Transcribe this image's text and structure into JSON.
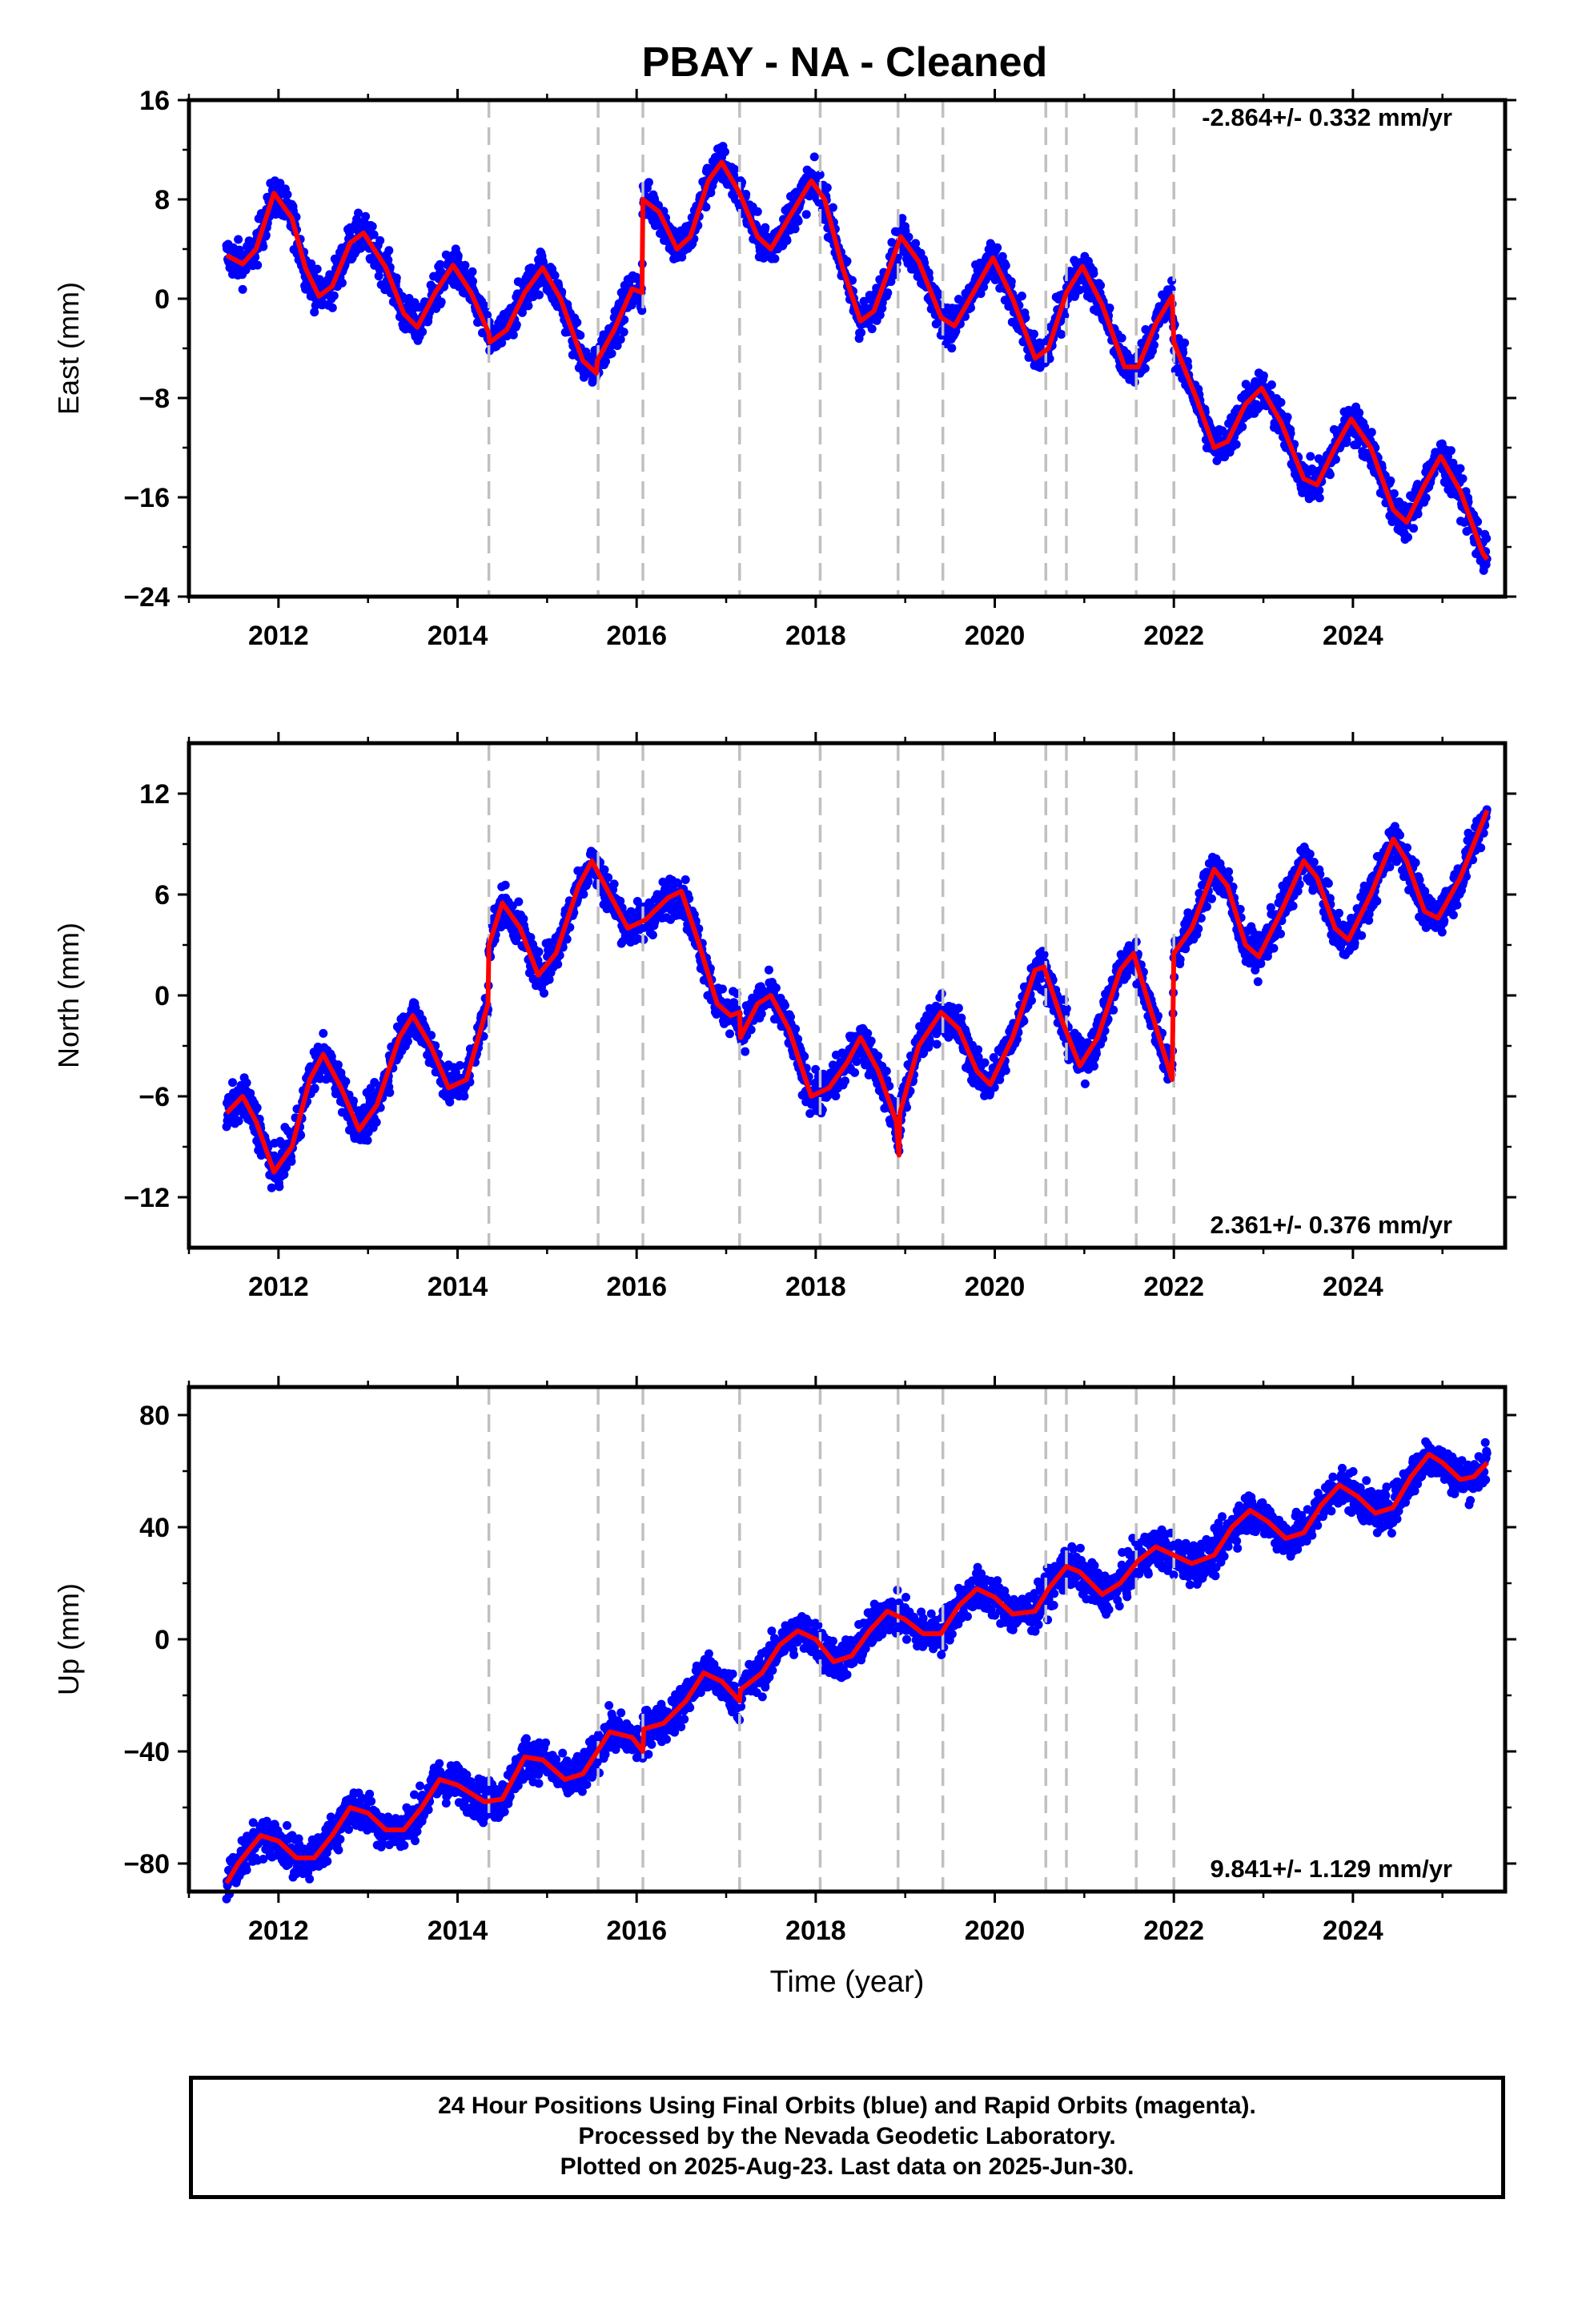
{
  "title": "PBAY  - NA - Cleaned",
  "xlabel": "Time (year)",
  "footer": {
    "line1": "24 Hour Positions Using Final Orbits (blue) and Rapid Orbits (magenta).",
    "line2": "Processed by the Nevada Geodetic Laboratory.",
    "line3": "Plotted on 2025-Aug-23. Last data on 2025-Jun-30."
  },
  "colors": {
    "data": "#0000ff",
    "model": "#ff0000",
    "steps": "#c0c0c0",
    "frame": "#000000"
  },
  "chart_data": [
    {
      "type": "scatter",
      "name": "east",
      "ylabel": "East (mm)",
      "rate_label": "-2.864+/- 0.332 mm/yr",
      "rate_position": "top-right",
      "xlim": [
        2011.0,
        2025.7
      ],
      "ylim": [
        -24,
        16
      ],
      "xticks": [
        2012,
        2014,
        2016,
        2018,
        2020,
        2022,
        2024
      ],
      "yticks": [
        16,
        8,
        0,
        -8,
        -16,
        -24
      ],
      "ytick_labels": [
        "16",
        "8",
        "0",
        "−8",
        "−16",
        "−24"
      ],
      "steps": [
        2014.35,
        2015.57,
        2016.07,
        2017.15,
        2018.05,
        2018.92,
        2019.42,
        2020.57,
        2020.8,
        2021.58,
        2022.0
      ],
      "model": [
        [
          2011.42,
          3.5
        ],
        [
          2011.6,
          2.8
        ],
        [
          2011.75,
          4.0
        ],
        [
          2011.95,
          8.5
        ],
        [
          2012.15,
          6.5
        ],
        [
          2012.3,
          2.5
        ],
        [
          2012.45,
          0.2
        ],
        [
          2012.6,
          1.0
        ],
        [
          2012.8,
          4.5
        ],
        [
          2012.95,
          5.3
        ],
        [
          2013.2,
          2.5
        ],
        [
          2013.4,
          -1.2
        ],
        [
          2013.55,
          -2.3
        ],
        [
          2013.75,
          0.5
        ],
        [
          2013.95,
          2.7
        ],
        [
          2014.15,
          0.5
        ],
        [
          2014.35,
          -2.8
        ],
        [
          2014.36,
          -3.5
        ],
        [
          2014.55,
          -2.5
        ],
        [
          2014.75,
          0.5
        ],
        [
          2014.95,
          2.5
        ],
        [
          2015.15,
          0.0
        ],
        [
          2015.4,
          -5.0
        ],
        [
          2015.55,
          -6.0
        ],
        [
          2015.56,
          -5.0
        ],
        [
          2015.75,
          -2.5
        ],
        [
          2015.95,
          0.8
        ],
        [
          2016.06,
          0.5
        ],
        [
          2016.07,
          8.0
        ],
        [
          2016.25,
          7.0
        ],
        [
          2016.45,
          4.0
        ],
        [
          2016.6,
          5.0
        ],
        [
          2016.8,
          9.5
        ],
        [
          2016.95,
          11.0
        ],
        [
          2017.15,
          8.5
        ],
        [
          2017.35,
          5.0
        ],
        [
          2017.5,
          4.0
        ],
        [
          2017.7,
          6.5
        ],
        [
          2017.95,
          9.5
        ],
        [
          2018.1,
          8.0
        ],
        [
          2018.3,
          2.5
        ],
        [
          2018.5,
          -1.8
        ],
        [
          2018.65,
          -1.0
        ],
        [
          2018.95,
          5.0
        ],
        [
          2019.15,
          3.0
        ],
        [
          2019.4,
          -1.5
        ],
        [
          2019.55,
          -2.2
        ],
        [
          2019.8,
          1.0
        ],
        [
          2019.98,
          3.3
        ],
        [
          2020.2,
          0.0
        ],
        [
          2020.45,
          -4.8
        ],
        [
          2020.6,
          -4.0
        ],
        [
          2020.8,
          0.5
        ],
        [
          2020.98,
          2.6
        ],
        [
          2021.2,
          -0.5
        ],
        [
          2021.45,
          -5.5
        ],
        [
          2021.6,
          -5.5
        ],
        [
          2021.8,
          -2.0
        ],
        [
          2021.98,
          0.2
        ],
        [
          2022.0,
          -3.5
        ],
        [
          2022.25,
          -8.0
        ],
        [
          2022.45,
          -12.0
        ],
        [
          2022.6,
          -11.5
        ],
        [
          2022.8,
          -8.5
        ],
        [
          2022.98,
          -7.2
        ],
        [
          2023.2,
          -10.0
        ],
        [
          2023.45,
          -14.5
        ],
        [
          2023.6,
          -15.0
        ],
        [
          2023.8,
          -12.0
        ],
        [
          2023.98,
          -9.7
        ],
        [
          2024.2,
          -12.0
        ],
        [
          2024.45,
          -17.0
        ],
        [
          2024.6,
          -18.0
        ],
        [
          2024.8,
          -15.0
        ],
        [
          2024.98,
          -12.7
        ],
        [
          2025.2,
          -15.5
        ],
        [
          2025.45,
          -20.5
        ],
        [
          2025.5,
          -21.0
        ]
      ]
    },
    {
      "type": "scatter",
      "name": "north",
      "ylabel": "North (mm)",
      "rate_label": "2.361+/- 0.376 mm/yr",
      "rate_position": "bottom-right",
      "xlim": [
        2011.0,
        2025.7
      ],
      "ylim": [
        -15,
        15
      ],
      "xticks": [
        2012,
        2014,
        2016,
        2018,
        2020,
        2022,
        2024
      ],
      "yticks": [
        12,
        6,
        0,
        -6,
        -12
      ],
      "ytick_labels": [
        "12",
        "6",
        "0",
        "−6",
        "−12"
      ],
      "steps": [
        2014.35,
        2015.57,
        2016.07,
        2017.15,
        2018.05,
        2018.92,
        2019.42,
        2020.57,
        2020.8,
        2021.58,
        2022.0
      ],
      "model": [
        [
          2011.42,
          -7.0
        ],
        [
          2011.6,
          -6.0
        ],
        [
          2011.75,
          -7.5
        ],
        [
          2011.95,
          -10.5
        ],
        [
          2012.15,
          -9.0
        ],
        [
          2012.35,
          -5.0
        ],
        [
          2012.5,
          -3.5
        ],
        [
          2012.7,
          -5.5
        ],
        [
          2012.9,
          -8.0
        ],
        [
          2013.1,
          -6.5
        ],
        [
          2013.35,
          -2.5
        ],
        [
          2013.5,
          -1.2
        ],
        [
          2013.7,
          -3.0
        ],
        [
          2013.9,
          -5.5
        ],
        [
          2014.1,
          -5.0
        ],
        [
          2014.34,
          -0.5
        ],
        [
          2014.35,
          3.0
        ],
        [
          2014.5,
          5.5
        ],
        [
          2014.7,
          4.0
        ],
        [
          2014.9,
          1.2
        ],
        [
          2015.1,
          2.5
        ],
        [
          2015.35,
          6.5
        ],
        [
          2015.5,
          8.0
        ],
        [
          2015.7,
          6.0
        ],
        [
          2015.9,
          4.0
        ],
        [
          2016.1,
          4.5
        ],
        [
          2016.35,
          5.8
        ],
        [
          2016.5,
          6.2
        ],
        [
          2016.7,
          3.0
        ],
        [
          2016.9,
          -0.5
        ],
        [
          2017.05,
          -1.2
        ],
        [
          2017.15,
          -1.0
        ],
        [
          2017.16,
          -2.5
        ],
        [
          2017.35,
          -0.5
        ],
        [
          2017.5,
          0.0
        ],
        [
          2017.7,
          -2.0
        ],
        [
          2017.95,
          -6.0
        ],
        [
          2018.15,
          -5.5
        ],
        [
          2018.35,
          -4.0
        ],
        [
          2018.5,
          -2.5
        ],
        [
          2018.7,
          -4.5
        ],
        [
          2018.9,
          -7.5
        ],
        [
          2018.93,
          -9.5
        ],
        [
          2018.94,
          -7.0
        ],
        [
          2019.15,
          -3.0
        ],
        [
          2019.4,
          -1.0
        ],
        [
          2019.6,
          -2.0
        ],
        [
          2019.8,
          -4.5
        ],
        [
          2019.95,
          -5.3
        ],
        [
          2020.2,
          -2.5
        ],
        [
          2020.45,
          1.5
        ],
        [
          2020.55,
          1.7
        ],
        [
          2020.75,
          -1.5
        ],
        [
          2020.95,
          -4.2
        ],
        [
          2021.15,
          -2.5
        ],
        [
          2021.4,
          1.5
        ],
        [
          2021.55,
          2.5
        ],
        [
          2021.75,
          -1.0
        ],
        [
          2021.98,
          -5.0
        ],
        [
          2022.0,
          2.5
        ],
        [
          2022.2,
          4.0
        ],
        [
          2022.45,
          7.5
        ],
        [
          2022.6,
          6.5
        ],
        [
          2022.8,
          3.0
        ],
        [
          2022.95,
          2.3
        ],
        [
          2023.2,
          5.0
        ],
        [
          2023.45,
          8.0
        ],
        [
          2023.6,
          7.0
        ],
        [
          2023.8,
          4.0
        ],
        [
          2023.95,
          3.3
        ],
        [
          2024.2,
          6.0
        ],
        [
          2024.45,
          9.3
        ],
        [
          2024.6,
          8.0
        ],
        [
          2024.8,
          5.0
        ],
        [
          2024.95,
          4.6
        ],
        [
          2025.2,
          7.0
        ],
        [
          2025.5,
          11.0
        ]
      ]
    },
    {
      "type": "scatter",
      "name": "up",
      "ylabel": "Up (mm)",
      "rate_label": "9.841+/- 1.129 mm/yr",
      "rate_position": "bottom-right",
      "xlim": [
        2011.0,
        2025.7
      ],
      "ylim": [
        -90,
        90
      ],
      "xticks": [
        2012,
        2014,
        2016,
        2018,
        2020,
        2022,
        2024
      ],
      "yticks": [
        80,
        40,
        0,
        -40,
        -80
      ],
      "ytick_labels": [
        "80",
        "40",
        "0",
        "−40",
        "−80"
      ],
      "steps": [
        2014.35,
        2015.57,
        2016.07,
        2017.15,
        2018.05,
        2018.92,
        2019.42,
        2020.57,
        2020.8,
        2021.58,
        2022.0
      ],
      "model": [
        [
          2011.42,
          -87
        ],
        [
          2011.55,
          -80
        ],
        [
          2011.8,
          -70
        ],
        [
          2012.0,
          -72
        ],
        [
          2012.2,
          -78
        ],
        [
          2012.4,
          -78
        ],
        [
          2012.6,
          -70
        ],
        [
          2012.8,
          -60
        ],
        [
          2013.0,
          -62
        ],
        [
          2013.2,
          -68
        ],
        [
          2013.4,
          -68
        ],
        [
          2013.6,
          -60
        ],
        [
          2013.8,
          -50
        ],
        [
          2014.0,
          -52
        ],
        [
          2014.3,
          -58
        ],
        [
          2014.5,
          -57
        ],
        [
          2014.75,
          -42
        ],
        [
          2014.95,
          -43
        ],
        [
          2015.2,
          -50
        ],
        [
          2015.4,
          -48
        ],
        [
          2015.7,
          -33
        ],
        [
          2015.95,
          -35
        ],
        [
          2016.07,
          -40
        ],
        [
          2016.08,
          -32
        ],
        [
          2016.3,
          -30
        ],
        [
          2016.55,
          -22
        ],
        [
          2016.75,
          -12
        ],
        [
          2016.95,
          -15
        ],
        [
          2017.15,
          -22
        ],
        [
          2017.16,
          -18
        ],
        [
          2017.4,
          -12
        ],
        [
          2017.6,
          -2
        ],
        [
          2017.8,
          3
        ],
        [
          2018.0,
          0
        ],
        [
          2018.2,
          -8
        ],
        [
          2018.4,
          -6
        ],
        [
          2018.6,
          3
        ],
        [
          2018.8,
          10
        ],
        [
          2019.0,
          7
        ],
        [
          2019.2,
          2
        ],
        [
          2019.4,
          2
        ],
        [
          2019.6,
          12
        ],
        [
          2019.8,
          18
        ],
        [
          2020.0,
          15
        ],
        [
          2020.2,
          9
        ],
        [
          2020.45,
          10
        ],
        [
          2020.6,
          18
        ],
        [
          2020.8,
          26
        ],
        [
          2020.95,
          24
        ],
        [
          2021.2,
          16
        ],
        [
          2021.4,
          20
        ],
        [
          2021.6,
          28
        ],
        [
          2021.8,
          33
        ],
        [
          2022.0,
          30
        ],
        [
          2022.2,
          27
        ],
        [
          2022.45,
          30
        ],
        [
          2022.65,
          40
        ],
        [
          2022.85,
          46
        ],
        [
          2023.05,
          42
        ],
        [
          2023.25,
          36
        ],
        [
          2023.45,
          38
        ],
        [
          2023.65,
          48
        ],
        [
          2023.85,
          55
        ],
        [
          2024.05,
          51
        ],
        [
          2024.25,
          45
        ],
        [
          2024.45,
          47
        ],
        [
          2024.65,
          58
        ],
        [
          2024.85,
          66
        ],
        [
          2025.0,
          63
        ],
        [
          2025.2,
          57
        ],
        [
          2025.35,
          58
        ],
        [
          2025.5,
          63
        ]
      ]
    }
  ]
}
